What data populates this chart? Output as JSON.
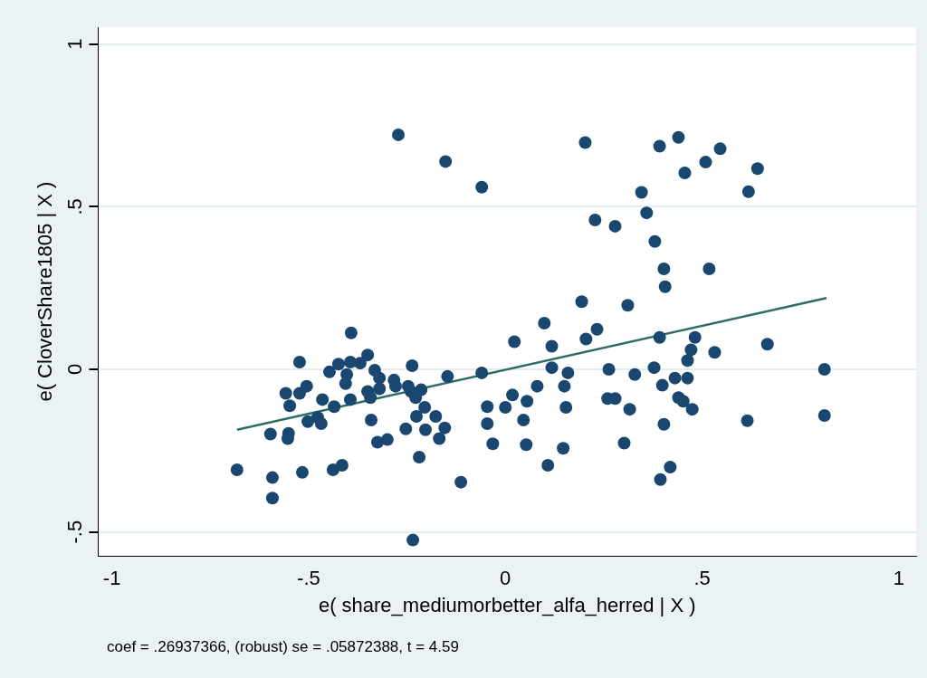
{
  "chart_data": {
    "type": "scatter",
    "xlabel": "e( share_mediumorbetter_alfa_herred | X )",
    "ylabel": "e( CloverShare1805 | X )",
    "annotations": [
      "coef = .26937366, (robust) se = .05872388, t = 4.59"
    ],
    "xlim": [
      -1.035,
      1.044
    ],
    "ylim": [
      -0.574,
      1.052
    ],
    "xticks": [
      {
        "value": -1,
        "label": "-1"
      },
      {
        "value": -0.5,
        "label": "-.5"
      },
      0,
      {
        "value": 0.5,
        "label": ".5"
      },
      1
    ],
    "yticks": [
      {
        "value": -0.5,
        "label": "-.5"
      },
      0,
      {
        "value": 0.5,
        "label": ".5"
      },
      1
    ],
    "grid": "y",
    "series": [
      {
        "type": "scatter",
        "color": "#1a476f",
        "marker": "circle",
        "x": [
          -0.682,
          -0.597,
          -0.592,
          -0.592,
          -0.558,
          -0.548,
          -0.523,
          -0.523,
          -0.505,
          -0.551,
          -0.553,
          -0.516,
          -0.502,
          -0.477,
          -0.468,
          -0.465,
          -0.447,
          -0.424,
          -0.435,
          -0.438,
          -0.415,
          -0.403,
          -0.406,
          -0.392,
          -0.394,
          -0.394,
          -0.369,
          -0.35,
          -0.332,
          -0.32,
          -0.32,
          -0.35,
          -0.343,
          -0.341,
          -0.325,
          -0.3,
          -0.283,
          -0.279,
          -0.247,
          -0.237,
          -0.24,
          -0.228,
          -0.214,
          -0.205,
          -0.226,
          -0.177,
          -0.203,
          -0.154,
          -0.168,
          -0.253,
          -0.219,
          -0.235,
          -0.147,
          -0.113,
          -0.272,
          -0.152,
          -0.06,
          -0.06,
          0.023,
          0.099,
          0.118,
          0.118,
          0.159,
          0.194,
          0.205,
          0.233,
          -0.046,
          -0.046,
          -0.032,
          0,
          0.018,
          0.055,
          0.046,
          0.053,
          0.081,
          0.15,
          0.154,
          0.147,
          0.108,
          0.263,
          0.279,
          0.26,
          0.311,
          0.316,
          0.329,
          0.302,
          0.378,
          0.392,
          0.399,
          0.406,
          0.403,
          0.403,
          0.394,
          0.419,
          0.431,
          0.463,
          0.44,
          0.452,
          0.475,
          0.463,
          0.472,
          0.482,
          0.518,
          0.532,
          0.615,
          0.666,
          0.203,
          0.392,
          0.44,
          0.546,
          0.509,
          0.456,
          0.641,
          0.618,
          0.346,
          0.359,
          0.228,
          0.279,
          0.38,
          0.811,
          0.811
        ],
        "values": [
          -0.309,
          -0.199,
          -0.333,
          -0.396,
          -0.074,
          -0.112,
          0.022,
          -0.074,
          -0.052,
          -0.197,
          -0.213,
          -0.317,
          -0.161,
          -0.148,
          -0.167,
          -0.093,
          -0.008,
          0.016,
          -0.115,
          -0.309,
          -0.295,
          -0.016,
          -0.044,
          0.112,
          0.022,
          -0.093,
          0.019,
          0.044,
          -0.003,
          -0.027,
          -0.06,
          -0.068,
          -0.087,
          -0.156,
          -0.224,
          -0.216,
          -0.033,
          -0.052,
          -0.052,
          0.011,
          -0.068,
          -0.087,
          -0.063,
          -0.117,
          -0.145,
          -0.145,
          -0.186,
          -0.18,
          -0.213,
          -0.183,
          -0.27,
          -0.525,
          -0.022,
          -0.347,
          0.721,
          0.639,
          0.56,
          -0.011,
          0.085,
          0.142,
          0.071,
          0.005,
          -0.011,
          0.208,
          0.093,
          0.123,
          -0.115,
          -0.167,
          -0.229,
          -0.117,
          -0.079,
          -0.098,
          -0.156,
          -0.232,
          -0.052,
          -0.052,
          -0.117,
          -0.243,
          -0.295,
          0.0,
          -0.09,
          -0.09,
          0.197,
          -0.123,
          -0.016,
          -0.227,
          0.005,
          0.098,
          -0.049,
          0.254,
          0.309,
          -0.169,
          -0.339,
          -0.301,
          -0.027,
          -0.027,
          -0.087,
          -0.098,
          -0.123,
          0.027,
          0.06,
          0.098,
          0.309,
          0.052,
          -0.158,
          0.077,
          0.697,
          0.686,
          0.713,
          0.678,
          0.637,
          0.604,
          0.617,
          0.546,
          0.544,
          0.481,
          0.459,
          0.44,
          0.393,
          0.0,
          -0.142
        ]
      },
      {
        "type": "line",
        "color": "#2d6d66",
        "marker": "none",
        "x": [
          -0.682,
          0.816
        ],
        "values": [
          -0.186,
          0.219
        ]
      }
    ]
  }
}
